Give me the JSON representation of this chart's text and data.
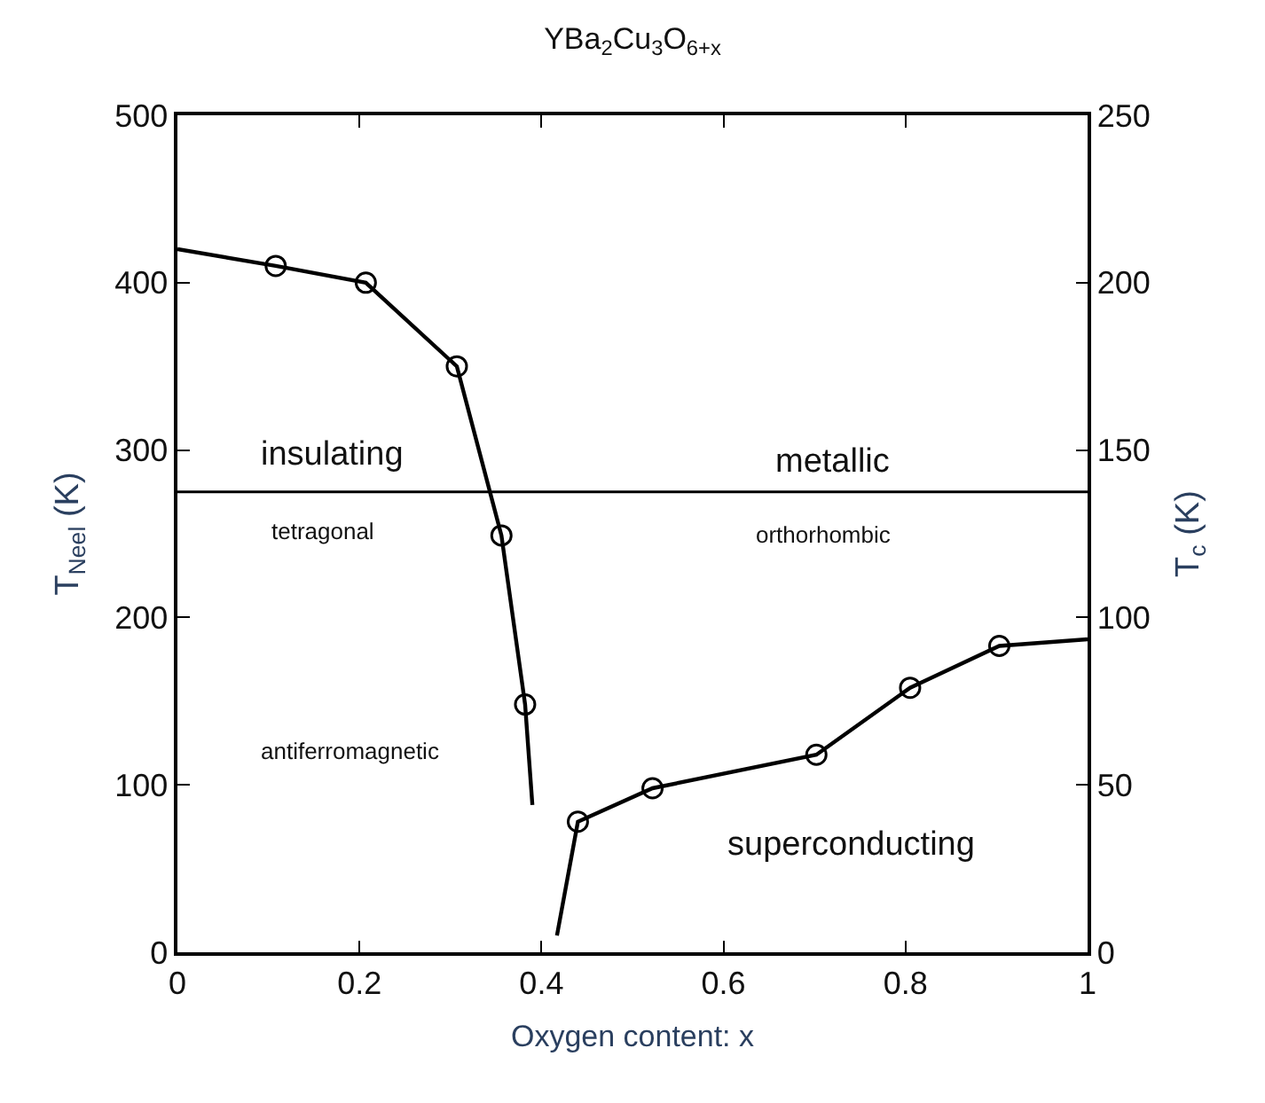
{
  "chart_data": {
    "type": "line",
    "title": "YBa$_{2}$Cu$_{3}$O$_{6+x}$",
    "xlabel": "Oxygen content: x",
    "ylabel": "T$_{Neel}$ (K)",
    "y2label": "T$_{c}$ (K)",
    "xlim": [
      0,
      1
    ],
    "xticks": [
      0,
      0.2,
      0.4,
      0.6,
      0.8,
      1
    ],
    "ylim": [
      0,
      500
    ],
    "yticks": [
      0,
      100,
      200,
      300,
      400,
      500
    ],
    "y2lim": [
      0,
      250
    ],
    "y2ticks": [
      0,
      50,
      100,
      150,
      200,
      250
    ],
    "series": [
      {
        "marker": "none",
        "color": "#000000",
        "x": [
          0,
          0.108,
          0.207,
          0.307,
          0.356,
          0.382,
          0.39
        ],
        "values": [
          420,
          410,
          400,
          350,
          249,
          148,
          88
        ]
      },
      {
        "type": "scatter",
        "marker": "circle",
        "color": "#000000",
        "x": [
          0.108,
          0.207,
          0.307,
          0.356,
          0.382
        ],
        "values": [
          410,
          400,
          350,
          249,
          148
        ]
      },
      {
        "marker": "none",
        "axis": "y2",
        "color": "#000000",
        "x": [
          0.417,
          0.44,
          0.522,
          0.702,
          0.805,
          0.903,
          1.0
        ],
        "values": [
          5,
          39,
          49,
          59,
          79,
          91.5,
          93.5
        ]
      },
      {
        "type": "scatter",
        "marker": "circle",
        "axis": "y2",
        "color": "#000000",
        "x": [
          0.44,
          0.522,
          0.702,
          0.805,
          0.903
        ],
        "values": [
          39,
          49,
          59,
          79,
          91.5
        ]
      }
    ],
    "ref_lines": [
      {
        "axis": "y",
        "value": 275,
        "color": "#000000",
        "line_style": "solid"
      }
    ],
    "annotations": [
      "insulating",
      "tetragonal",
      "metallic",
      "orthorhombic",
      "antiferromagnetic",
      "superconducting"
    ]
  }
}
